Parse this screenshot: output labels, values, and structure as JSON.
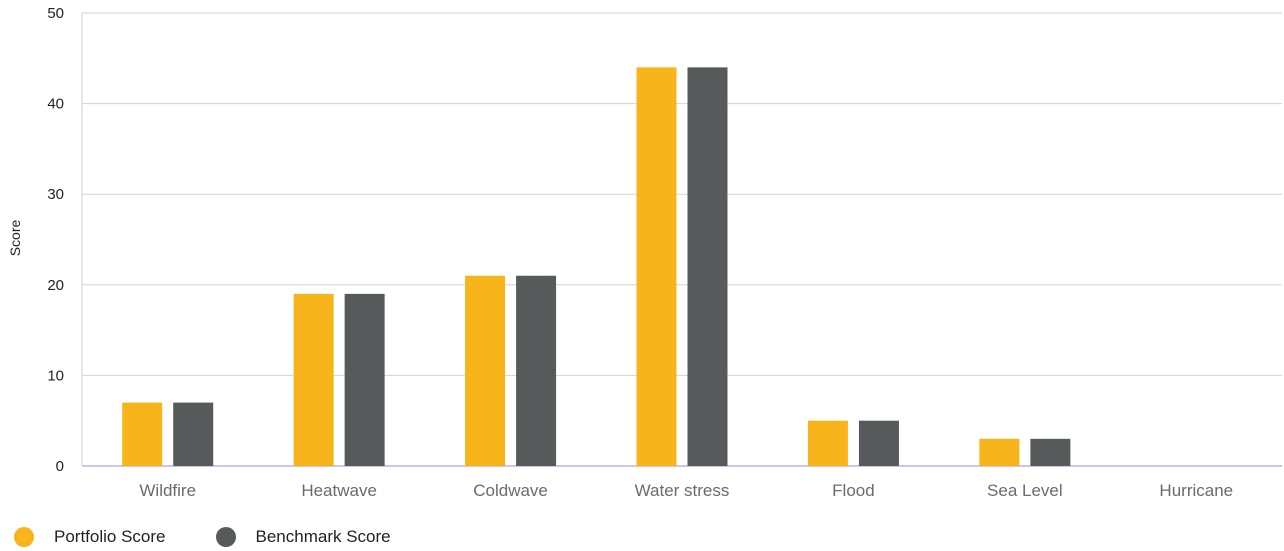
{
  "chart_data": {
    "type": "bar",
    "categories": [
      "Wildfire",
      "Heatwave",
      "Coldwave",
      "Water stress",
      "Flood",
      "Sea Level",
      "Hurricane"
    ],
    "series": [
      {
        "name": "Portfolio Score",
        "color": "#F7B51B",
        "values": [
          7,
          19,
          21,
          44,
          5,
          3,
          0
        ]
      },
      {
        "name": "Benchmark Score",
        "color": "#575A5B",
        "values": [
          7,
          19,
          21,
          44,
          5,
          3,
          0
        ]
      }
    ],
    "title": "",
    "xlabel": "",
    "ylabel": "Score",
    "ylim": [
      0,
      50
    ],
    "yticks": [
      "0",
      "10",
      "20",
      "30",
      "40",
      "50"
    ],
    "grid": true,
    "legend_position": "bottom-left"
  }
}
